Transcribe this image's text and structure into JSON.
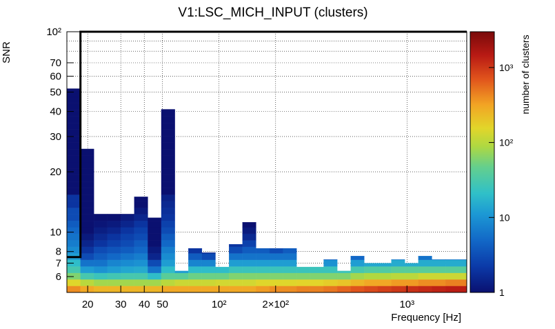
{
  "chart_data": {
    "type": "heatmap",
    "title": "V1:LSC_MICH_INPUT (clusters)",
    "xlabel": "Frequency [Hz]",
    "ylabel": "SNR",
    "zlabel": "number of clusters",
    "x_scale": "log",
    "y_scale": "log",
    "z_scale": "log",
    "xlim": [
      15.5,
      2080
    ],
    "ylim": [
      5,
      100
    ],
    "zlim": [
      1,
      3000
    ],
    "x_ticks": [
      {
        "value": 20,
        "label": "20"
      },
      {
        "value": 30,
        "label": "30"
      },
      {
        "value": 40,
        "label": "40"
      },
      {
        "value": 50,
        "label": "50"
      },
      {
        "value": 100,
        "label": "10²"
      },
      {
        "value": 200,
        "label": "2×10²"
      },
      {
        "value": 1000,
        "label": "10³"
      }
    ],
    "y_ticks": [
      {
        "value": 6,
        "label": "6"
      },
      {
        "value": 7,
        "label": "7"
      },
      {
        "value": 8,
        "label": "8"
      },
      {
        "value": 10,
        "label": "10"
      },
      {
        "value": 20,
        "label": "20"
      },
      {
        "value": 30,
        "label": "30"
      },
      {
        "value": 40,
        "label": "40"
      },
      {
        "value": 50,
        "label": "50"
      },
      {
        "value": 60,
        "label": "60"
      },
      {
        "value": 70,
        "label": "70"
      },
      {
        "value": 100,
        "label": "10²"
      }
    ],
    "z_ticks": [
      {
        "value": 1,
        "label": "1"
      },
      {
        "value": 10,
        "label": "10"
      },
      {
        "value": 100,
        "label": "10²"
      },
      {
        "value": 1000,
        "label": "10³"
      }
    ],
    "threshold_curve": [
      [
        15.5,
        7.5
      ],
      [
        18.3,
        7.5
      ],
      [
        18.3,
        100
      ],
      [
        2080,
        100
      ]
    ],
    "columns": [
      {
        "f0": 15.5,
        "f1": 18.3,
        "snr_max": 52,
        "counts_low": [
          400,
          150,
          60,
          30,
          20,
          12,
          9,
          7,
          6,
          5,
          4,
          3,
          3,
          2,
          2
        ]
      },
      {
        "f0": 18.3,
        "f1": 21.6,
        "snr_max": 26,
        "counts_low": [
          300,
          100,
          30,
          12,
          6,
          3,
          2,
          1.5,
          1.2,
          1,
          1,
          1,
          1,
          1,
          1
        ]
      },
      {
        "f0": 21.6,
        "f1": 25.5,
        "snr_max": 12.3,
        "counts_low": [
          250,
          80,
          25,
          10,
          6,
          4,
          3,
          2,
          1.6,
          1.3,
          1.1,
          1
        ]
      },
      {
        "f0": 25.5,
        "f1": 30.0,
        "snr_max": 12.3,
        "counts_low": [
          250,
          80,
          28,
          12,
          8,
          5,
          3.5,
          2.5,
          2,
          1.5,
          1.2,
          1
        ]
      },
      {
        "f0": 30.0,
        "f1": 35.4,
        "snr_max": 12.3,
        "counts_low": [
          250,
          80,
          30,
          14,
          9,
          6,
          4,
          3,
          2.5,
          2,
          1.5,
          1.2
        ]
      },
      {
        "f0": 35.4,
        "f1": 41.8,
        "snr_max": 15,
        "counts_low": [
          250,
          80,
          30,
          15,
          10,
          7,
          5,
          4,
          3,
          2.5,
          2,
          1.5,
          1.2,
          1
        ]
      },
      {
        "f0": 41.8,
        "f1": 49.3,
        "snr_max": 11.8,
        "counts_low": [
          250,
          80,
          20,
          6,
          3,
          1.5,
          1.2,
          1,
          1,
          1,
          1,
          1
        ]
      },
      {
        "f0": 49.3,
        "f1": 58.2,
        "snr_max": 41,
        "counts_low": [
          300,
          100,
          40,
          20,
          12,
          9,
          7,
          5,
          4,
          3,
          2.5,
          2,
          1.8,
          1.6,
          1.4
        ]
      },
      {
        "f0": 58.2,
        "f1": 68.7,
        "snr_max": 6.4,
        "counts_low": [
          300,
          120,
          40,
          12,
          4,
          1.5
        ]
      },
      {
        "f0": 68.7,
        "f1": 81.1,
        "snr_max": 8.3,
        "counts_low": [
          300,
          120,
          50,
          20,
          8,
          4,
          2,
          1.2
        ]
      },
      {
        "f0": 81.1,
        "f1": 95.7,
        "snr_max": 7.9,
        "counts_low": [
          300,
          120,
          50,
          20,
          8,
          3,
          1.5,
          1
        ]
      },
      {
        "f0": 95.7,
        "f1": 113.0,
        "snr_max": 6.7,
        "counts_low": [
          300,
          130,
          50,
          20,
          8,
          3
        ]
      },
      {
        "f0": 113.0,
        "f1": 133.3,
        "snr_max": 8.7,
        "counts_low": [
          300,
          130,
          60,
          25,
          12,
          6,
          3,
          2,
          1.5
        ]
      },
      {
        "f0": 133.3,
        "f1": 157.4,
        "snr_max": 11.2,
        "counts_low": [
          300,
          130,
          60,
          25,
          12,
          6,
          4,
          2.5,
          1.6,
          1.2,
          1
        ]
      },
      {
        "f0": 157.4,
        "f1": 185.8,
        "snr_max": 8.3,
        "counts_low": [
          350,
          150,
          60,
          25,
          12,
          6,
          4,
          3
        ]
      },
      {
        "f0": 185.8,
        "f1": 219.2,
        "snr_max": 8.3,
        "counts_low": [
          400,
          150,
          60,
          25,
          12,
          6,
          3,
          2
        ]
      },
      {
        "f0": 219.2,
        "f1": 258.8,
        "snr_max": 8.3,
        "counts_low": [
          400,
          150,
          60,
          25,
          12,
          6,
          4,
          3
        ]
      },
      {
        "f0": 258.8,
        "f1": 305.4,
        "snr_max": 6.7,
        "counts_low": [
          450,
          160,
          60,
          25,
          10,
          2.5
        ]
      },
      {
        "f0": 305.4,
        "f1": 360.5,
        "snr_max": 6.7,
        "counts_low": [
          450,
          160,
          60,
          25,
          10,
          2.5
        ]
      },
      {
        "f0": 360.5,
        "f1": 425.5,
        "snr_max": 7.3,
        "counts_low": [
          500,
          180,
          60,
          25,
          10,
          4,
          1.5
        ]
      },
      {
        "f0": 425.5,
        "f1": 502.2,
        "snr_max": 6.4,
        "counts_low": [
          600,
          200,
          60,
          25,
          10,
          5
        ]
      },
      {
        "f0": 502.2,
        "f1": 592.7,
        "snr_max": 7.6,
        "counts_low": [
          700,
          250,
          80,
          30,
          12,
          5,
          3,
          1.5
        ]
      },
      {
        "f0": 592.7,
        "f1": 699.5,
        "snr_max": 7.0,
        "counts_low": [
          800,
          300,
          90,
          35,
          14,
          6,
          3
        ]
      },
      {
        "f0": 699.5,
        "f1": 825.6,
        "snr_max": 7.0,
        "counts_low": [
          900,
          300,
          90,
          35,
          14,
          6,
          3
        ]
      },
      {
        "f0": 825.6,
        "f1": 974.4,
        "snr_max": 7.3,
        "counts_low": [
          1000,
          350,
          100,
          40,
          15,
          6,
          3,
          1
        ]
      },
      {
        "f0": 974.4,
        "f1": 1150.0,
        "snr_max": 7.0,
        "counts_low": [
          1100,
          350,
          100,
          40,
          15,
          6,
          1.5
        ]
      },
      {
        "f0": 1150.0,
        "f1": 1357.3,
        "snr_max": 7.6,
        "counts_low": [
          1200,
          400,
          120,
          40,
          15,
          6,
          3,
          1
        ]
      },
      {
        "f0": 1357.3,
        "f1": 1602.0,
        "snr_max": 7.3,
        "counts_low": [
          1300,
          400,
          120,
          40,
          15,
          6,
          3
        ]
      },
      {
        "f0": 1602.0,
        "f1": 2080.0,
        "snr_max": 7.3,
        "counts_low": [
          1400,
          450,
          120,
          40,
          15,
          6,
          3
        ]
      }
    ]
  }
}
